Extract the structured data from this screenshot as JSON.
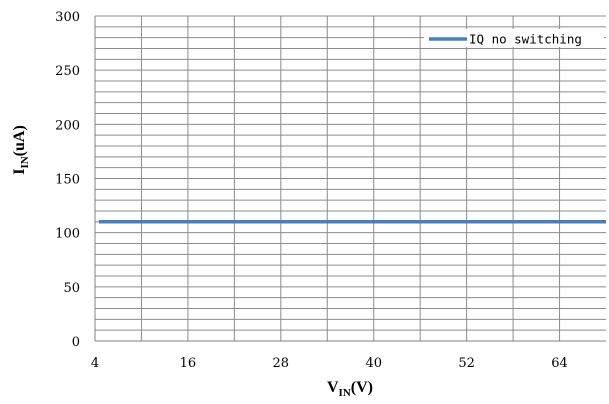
{
  "chart_data": {
    "type": "line",
    "title": "",
    "xlabel": {
      "main": "V",
      "sub": "IN",
      "suffix": "(V)"
    },
    "ylabel": {
      "main": "I",
      "sub": "IN",
      "suffix": "(uA)"
    },
    "xlim": [
      4,
      70
    ],
    "ylim": [
      0,
      300
    ],
    "x_ticks": [
      4,
      16,
      28,
      40,
      52,
      64
    ],
    "x_tick_labels": [
      "4",
      "16",
      "28",
      "40",
      "52",
      "64"
    ],
    "y_ticks": [
      0,
      50,
      100,
      150,
      200,
      250,
      300
    ],
    "y_tick_labels": [
      "0",
      "50",
      "100",
      "150",
      "200",
      "250",
      "300"
    ],
    "x_grid_step": 6,
    "y_grid_step": 10,
    "grid": true,
    "legend_position": "top-right",
    "series": [
      {
        "name": "IQ no switching",
        "color": "#4a7ebb",
        "x": [
          4.5,
          70
        ],
        "y": [
          110,
          110
        ]
      }
    ]
  }
}
